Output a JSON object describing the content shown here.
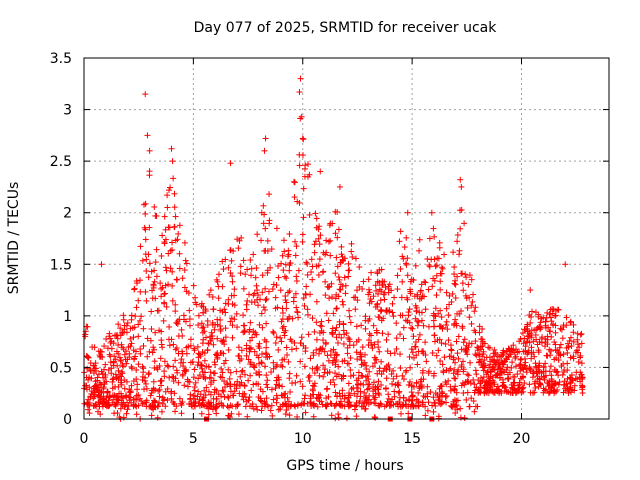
{
  "chart_data": {
    "type": "scatter",
    "title": "Day 077 of 2025, SRMTID for receiver ucak",
    "xlabel": "GPS time / hours",
    "ylabel": "SRMTID / TECUs",
    "xlim": [
      0,
      24
    ],
    "ylim": [
      0,
      3.5
    ],
    "xticks": [
      0,
      5,
      10,
      15,
      20
    ],
    "xtick_labels": [
      "0",
      "5",
      "10",
      "15",
      "20"
    ],
    "yticks": [
      0,
      0.5,
      1,
      1.5,
      2,
      2.5,
      3,
      3.5
    ],
    "ytick_labels": [
      "0",
      "0.5",
      "1",
      "1.5",
      "2",
      "2.5",
      "3",
      "3.5"
    ],
    "grid": true,
    "marker": "plus",
    "color": "#ff0000",
    "envelope": {
      "description": "approximate upper envelope of the SRMTID point cloud (hours, TECU)",
      "x": [
        0,
        0.5,
        1,
        1.5,
        2,
        2.5,
        2.8,
        3,
        3.5,
        4,
        4.5,
        5,
        5.5,
        6,
        6.5,
        7,
        7.5,
        8,
        8.5,
        9,
        9.5,
        9.9,
        10.5,
        11,
        11.5,
        12,
        12.5,
        13,
        13.5,
        14,
        14.5,
        15,
        15.5,
        16,
        16.5,
        17,
        17.3,
        17.6,
        18,
        18.5,
        19,
        19.5,
        20,
        20.5,
        21,
        21.5,
        22,
        22.5,
        22.8
      ],
      "y": [
        1.0,
        0.7,
        0.8,
        0.9,
        1.1,
        1.4,
        2.7,
        2.4,
        1.8,
        2.5,
        1.9,
        1.3,
        1.1,
        1.4,
        1.6,
        1.9,
        1.6,
        2.0,
        2.2,
        1.7,
        2.0,
        3.2,
        2.1,
        1.7,
        2.1,
        1.8,
        1.7,
        1.4,
        1.5,
        1.3,
        1.9,
        1.6,
        1.8,
        1.9,
        1.6,
        1.7,
        2.3,
        1.6,
        1.0,
        0.7,
        0.65,
        0.7,
        0.8,
        1.1,
        1.0,
        1.1,
        1.0,
        0.9,
        0.85
      ]
    },
    "spikes": [
      {
        "x": 2.8,
        "y": 3.15
      },
      {
        "x": 2.9,
        "y": 2.75
      },
      {
        "x": 3.0,
        "y": 2.6
      },
      {
        "x": 4.0,
        "y": 2.62
      },
      {
        "x": 4.05,
        "y": 2.5
      },
      {
        "x": 6.7,
        "y": 2.48
      },
      {
        "x": 8.3,
        "y": 2.72
      },
      {
        "x": 8.25,
        "y": 2.6
      },
      {
        "x": 9.6,
        "y": 2.3
      },
      {
        "x": 9.9,
        "y": 3.3
      },
      {
        "x": 9.85,
        "y": 3.17
      },
      {
        "x": 9.95,
        "y": 2.93
      },
      {
        "x": 10.0,
        "y": 2.72
      },
      {
        "x": 10.1,
        "y": 2.35
      },
      {
        "x": 10.8,
        "y": 2.4
      },
      {
        "x": 11.7,
        "y": 2.25
      },
      {
        "x": 14.8,
        "y": 2.0
      },
      {
        "x": 15.9,
        "y": 2.0
      },
      {
        "x": 17.2,
        "y": 2.32
      },
      {
        "x": 17.25,
        "y": 2.25
      },
      {
        "x": 20.4,
        "y": 1.25
      },
      {
        "x": 22.0,
        "y": 1.5
      },
      {
        "x": 0.8,
        "y": 1.5
      }
    ],
    "zero_markers": [
      5.6,
      14.0,
      14.9,
      15.9
    ]
  }
}
